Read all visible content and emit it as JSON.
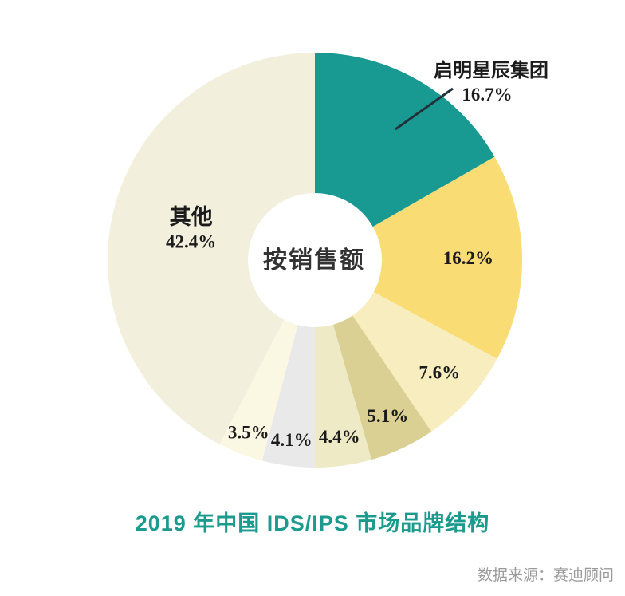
{
  "chart_data": {
    "type": "pie",
    "subtype": "donut",
    "title": "2019 年中国 IDS/IPS 市场品牌结构",
    "center_label": "按销售额",
    "source": "数据来源：赛迪顾问",
    "start_angle_deg": 0,
    "direction": "clockwise",
    "unit": "%",
    "slices": [
      {
        "name": "启明星辰集团",
        "value": 16.7,
        "label": "16.7%",
        "color": "#189a92",
        "label_pos": "callout"
      },
      {
        "name": "",
        "value": 16.2,
        "label": "16.2%",
        "color": "#f9dc73",
        "label_frac": 0.74
      },
      {
        "name": "",
        "value": 7.6,
        "label": "7.6%",
        "color": "#f8edbf",
        "label_frac": 0.81
      },
      {
        "name": "",
        "value": 5.1,
        "label": "5.1%",
        "color": "#dad094",
        "label_frac": 0.83
      },
      {
        "name": "",
        "value": 4.4,
        "label": "4.4%",
        "color": "#efeac6",
        "label_frac": 0.86
      },
      {
        "name": "",
        "value": 4.1,
        "label": "4.1%",
        "color": "#e9e9ea",
        "label_frac": 0.875
      },
      {
        "name": "",
        "value": 3.5,
        "label": "3.5%",
        "color": "#faf7e3",
        "label_frac": 0.89
      },
      {
        "name": "其他",
        "value": 42.4,
        "label": "42.4%",
        "color": "#f2f0dd",
        "label_frac": 0.615
      }
    ],
    "colors": {
      "background": "#ffffff",
      "title": "#1a9b8d",
      "label_text": "#1b1b1b",
      "center_text": "#333333",
      "source_text": "#9b9b9b",
      "leader_line": "#22313a"
    },
    "legend": "none"
  }
}
